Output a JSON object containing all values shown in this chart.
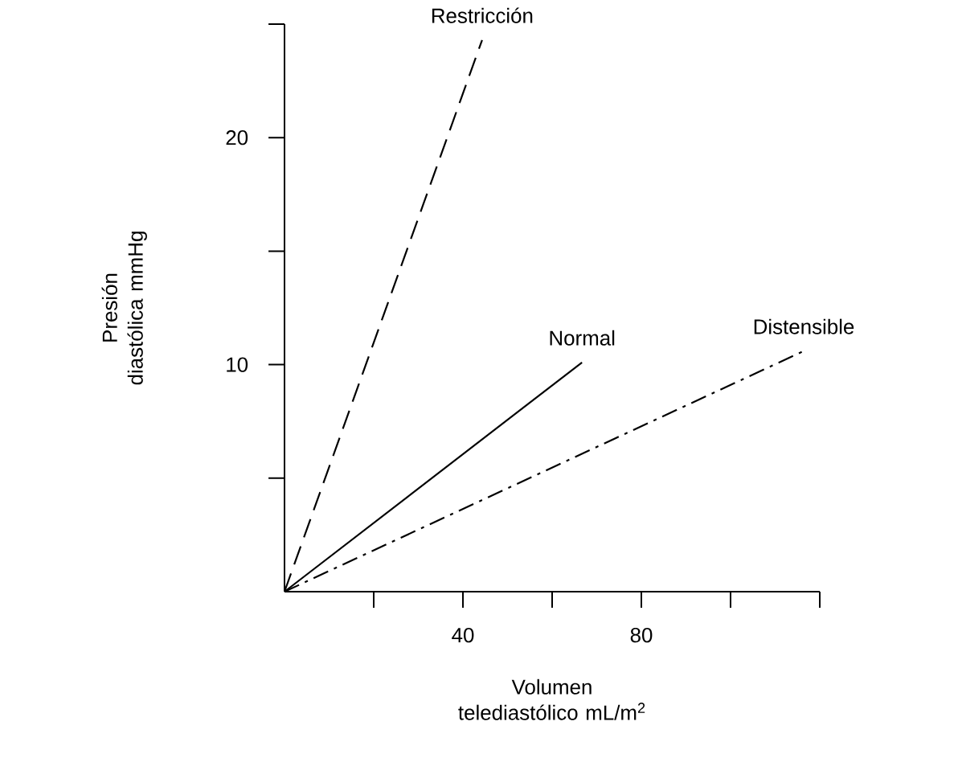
{
  "chart_data": {
    "type": "line",
    "xlabel": "Volumen telediastólico mL/m$^{2}$",
    "ylabel": "Presión diastólica mmHg",
    "series": [
      {
        "name": "Restricción",
        "color": "#000000",
        "line_style": "dashed",
        "x": [
          0,
          44.3
        ],
        "values": [
          0,
          24.3
        ]
      },
      {
        "name": "Normal",
        "color": "#000000",
        "line_style": "solid",
        "x": [
          0,
          66.7
        ],
        "values": [
          0,
          10.1
        ]
      },
      {
        "name": "Distensible",
        "color": "#000000",
        "line_style": "dashdot",
        "x": [
          0,
          116.4
        ],
        "values": [
          0,
          10.6
        ]
      }
    ],
    "xlim": [
      0,
      120
    ],
    "ylim": [
      0,
      25
    ],
    "xticks": [
      {
        "value": 20,
        "label": null
      },
      40,
      {
        "value": 60,
        "label": null
      },
      80,
      {
        "value": 100,
        "label": null
      },
      {
        "value": 120,
        "label": null
      }
    ],
    "yticks": [
      {
        "value": 5,
        "label": null
      },
      10,
      {
        "value": 15,
        "label": null
      },
      20,
      {
        "value": 25,
        "label": null
      }
    ],
    "marker": "none"
  }
}
